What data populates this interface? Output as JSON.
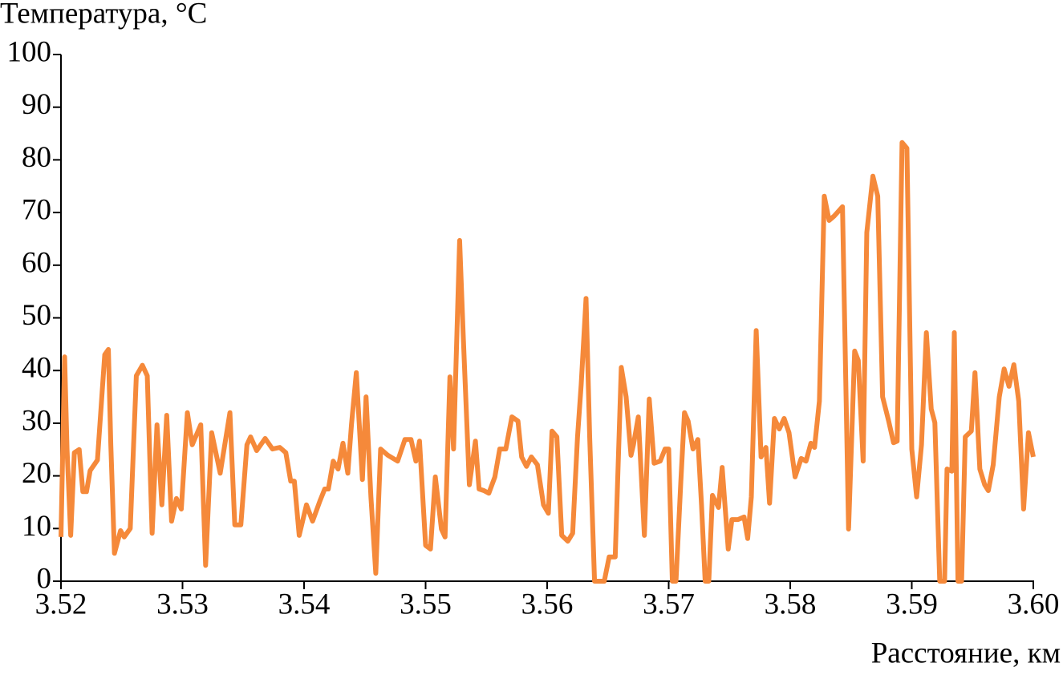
{
  "chart_data": {
    "type": "line",
    "y_label": "Температура, °C",
    "x_label": "Расстояние, км",
    "xlim": [
      3.52,
      3.6
    ],
    "xticks": [
      3.52,
      3.53,
      3.54,
      3.55,
      3.56,
      3.57,
      3.58,
      3.59,
      {
        "value": 3.6,
        "label": "3.60"
      }
    ],
    "ylim": [
      0,
      100
    ],
    "yticks": [
      0,
      10,
      20,
      30,
      40,
      50,
      60,
      70,
      80,
      90,
      100
    ],
    "grid": false,
    "series": [
      {
        "color": "#f5893a",
        "x": [
          3.52,
          3.5203,
          3.5205,
          3.5208,
          3.5211,
          3.5215,
          3.5218,
          3.5221,
          3.5224,
          3.523,
          3.5236,
          3.5239,
          3.5241,
          3.5244,
          3.5249,
          3.5252,
          3.5257,
          3.5262,
          3.5267,
          3.5271,
          3.5275,
          3.5279,
          3.5283,
          3.5287,
          3.5291,
          3.5295,
          3.5299,
          3.5304,
          3.5308,
          3.5315,
          3.5319,
          3.5324,
          3.5331,
          3.5339,
          3.5343,
          3.5348,
          3.5353,
          3.5356,
          3.5361,
          3.5368,
          3.5374,
          3.538,
          3.5385,
          3.5389,
          3.5392,
          3.5396,
          3.5402,
          3.5407,
          3.5413,
          3.5417,
          3.542,
          3.5424,
          3.5428,
          3.5432,
          3.5436,
          3.5439,
          3.5443,
          3.5448,
          3.5451,
          3.5455,
          3.5459,
          3.5463,
          3.5469,
          3.5477,
          3.5483,
          3.5488,
          3.5492,
          3.5495,
          3.55,
          3.5504,
          3.5508,
          3.5513,
          3.5516,
          3.552,
          3.5523,
          3.5528,
          3.5531,
          3.5536,
          3.5541,
          3.5544,
          3.5548,
          3.5552,
          3.5557,
          3.5561,
          3.5566,
          3.5571,
          3.5576,
          3.5579,
          3.5583,
          3.5587,
          3.5592,
          3.5597,
          3.5601,
          3.5604,
          3.5608,
          3.5612,
          3.5617,
          3.5621,
          3.5625,
          3.5628,
          3.5632,
          3.5635,
          3.5639,
          3.5647,
          3.5651,
          3.5656,
          3.5661,
          3.5665,
          3.5669,
          3.5671,
          3.5675,
          3.568,
          3.5684,
          3.5688,
          3.5693,
          3.5697,
          3.57,
          3.5703,
          3.5706,
          3.571,
          3.5713,
          3.5716,
          3.572,
          3.5724,
          3.5727,
          3.573,
          3.5733,
          3.5736,
          3.5741,
          3.5744,
          3.5749,
          3.5752,
          3.5757,
          3.5762,
          3.5765,
          3.5768,
          3.5772,
          3.5776,
          3.578,
          3.5783,
          3.5787,
          3.5791,
          3.5795,
          3.5799,
          3.5804,
          3.5809,
          3.5813,
          3.5817,
          3.582,
          3.5824,
          3.5828,
          3.5832,
          3.5836,
          3.5843,
          3.5848,
          3.5853,
          3.5856,
          3.586,
          3.5863,
          3.5868,
          3.5872,
          3.5876,
          3.5881,
          3.5885,
          3.5888,
          3.5892,
          3.5896,
          3.59,
          3.5904,
          3.5908,
          3.5912,
          3.5916,
          3.5919,
          3.5923,
          3.5927,
          3.5929,
          3.5933,
          3.5935,
          3.5938,
          3.5941,
          3.5944,
          3.5949,
          3.5952,
          3.5956,
          3.596,
          3.5963,
          3.5967,
          3.5972,
          3.5976,
          3.598,
          3.5984,
          3.5988,
          3.5992,
          3.5996,
          3.6
        ],
        "values": [
          8.4,
          42.6,
          25,
          8.7,
          24.4,
          25,
          17,
          17,
          21,
          23,
          43,
          44,
          26,
          5.3,
          9.6,
          8.4,
          10,
          39,
          41,
          39,
          9.1,
          29.7,
          14.5,
          31.5,
          11.4,
          15.7,
          13.7,
          32,
          25.9,
          29.7,
          3,
          28.2,
          20.5,
          32,
          10.7,
          10.7,
          25.9,
          27.4,
          24.8,
          27.1,
          25.1,
          25.4,
          24.4,
          19,
          19,
          8.7,
          14.5,
          11.4,
          15.2,
          17.5,
          17.5,
          22.8,
          21.3,
          26.2,
          20.5,
          29.7,
          39.6,
          19.3,
          35,
          16,
          1.5,
          25.1,
          23.9,
          22.8,
          26.9,
          26.9,
          22.8,
          26.6,
          6.8,
          6.1,
          19.8,
          9.9,
          8.4,
          38.8,
          25.1,
          64.7,
          46.4,
          18.3,
          26.6,
          17.5,
          17.2,
          16.7,
          19.8,
          25.1,
          25.1,
          31.2,
          30.4,
          23.6,
          21.8,
          23.6,
          22.1,
          14.5,
          12.9,
          28.5,
          27.4,
          8.7,
          7.6,
          9.1,
          27.4,
          37.3,
          53.7,
          27.4,
          0,
          0,
          4.6,
          4.6,
          40.6,
          35,
          23.9,
          25.9,
          31.2,
          8.7,
          34.6,
          22.4,
          22.8,
          25.1,
          25.1,
          0,
          0,
          19,
          32,
          30.4,
          25.1,
          26.9,
          14.5,
          0,
          0,
          16.3,
          14,
          21.6,
          6.1,
          11.7,
          11.7,
          12.2,
          8.1,
          16,
          47.6,
          23.6,
          25.4,
          14.8,
          30.9,
          28.9,
          30.9,
          28.2,
          19.8,
          23.3,
          22.8,
          26.2,
          25.4,
          34.2,
          73.1,
          68.5,
          69.3,
          71.1,
          9.9,
          43.7,
          41.9,
          22.8,
          66.2,
          76.9,
          73.1,
          35,
          30.4,
          26.3,
          26.6,
          83.3,
          82.2,
          25.1,
          16,
          25.9,
          47.2,
          32.7,
          30.1,
          0,
          0,
          21.3,
          20.9,
          47.2,
          0,
          0,
          27.4,
          28.5,
          39.6,
          21.3,
          18.3,
          17.2,
          22.1,
          35,
          40.3,
          37,
          41.1,
          34.2,
          13.7,
          28.2,
          23.6
        ]
      }
    ]
  }
}
